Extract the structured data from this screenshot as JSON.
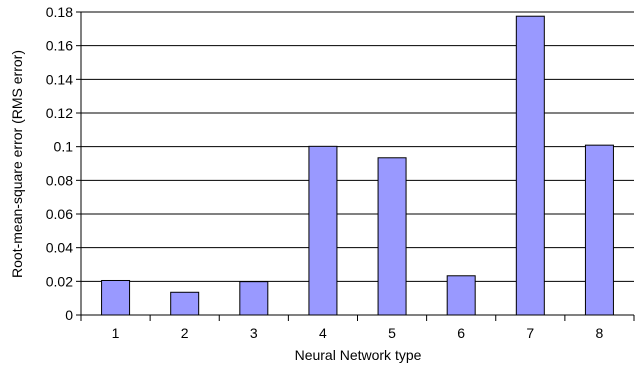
{
  "chart_data": {
    "type": "bar",
    "categories": [
      "1",
      "2",
      "3",
      "4",
      "5",
      "6",
      "7",
      "8"
    ],
    "values": [
      0.0205,
      0.0135,
      0.0198,
      0.1002,
      0.0934,
      0.0233,
      0.1775,
      0.1009
    ],
    "title": "",
    "xlabel": "Neural Network type",
    "ylabel": "Root-mean-square error (RMS error)",
    "ylim": [
      0,
      0.18
    ],
    "yticks": [
      0,
      0.02,
      0.04,
      0.06,
      0.08,
      0.1,
      0.12,
      0.14,
      0.16,
      0.18
    ],
    "ytick_labels": [
      "0",
      "0.02",
      "0.04",
      "0.06",
      "0.08",
      "0.1",
      "0.12",
      "0.14",
      "0.16",
      "0.18"
    ],
    "grid": true,
    "legend": "none",
    "bar_color": "#9999ff"
  }
}
